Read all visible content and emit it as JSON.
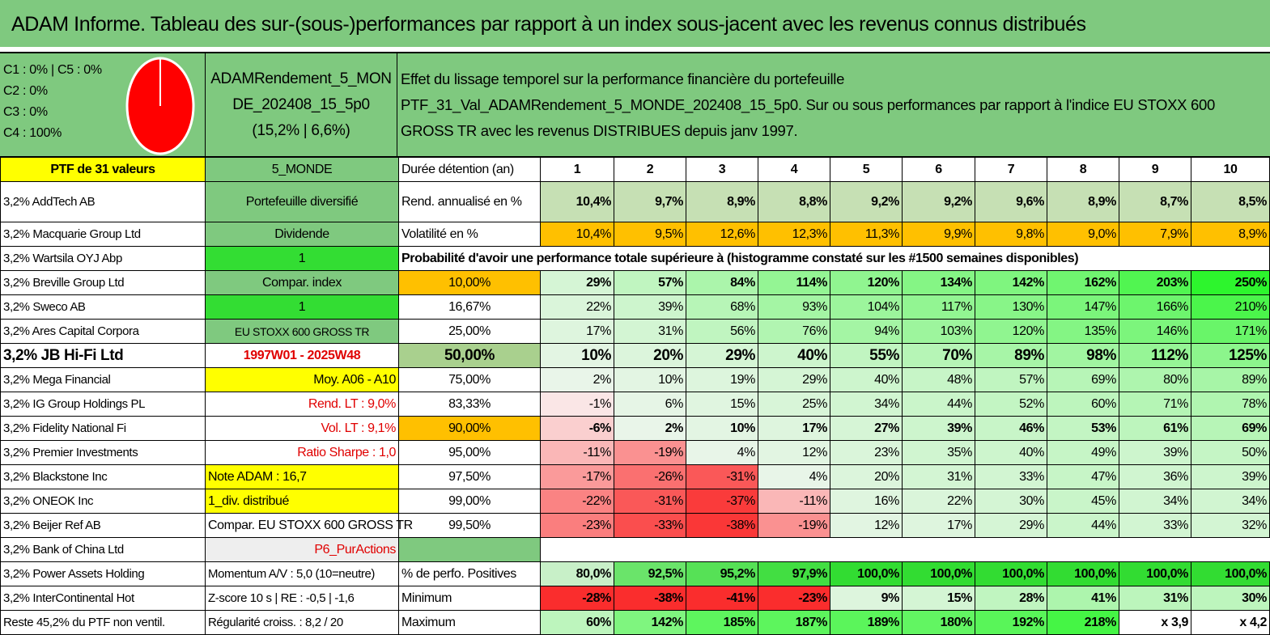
{
  "title": "ADAM Informe. Tableau des sur-(sous-)performances par rapport à un index sous-jacent avec les revenus connus distribués",
  "colors": {
    "green_header": "#7fc97f",
    "yellow": "#ffff00",
    "orange": "#ffc000",
    "bright_green": "#33dd33",
    "pie_red": "#ff0000"
  },
  "legend": [
    "C1 : 0% | C5 : 0%",
    "C2 : 0%",
    "C3 : 0%",
    "C4 : 100%"
  ],
  "pie_share": 100,
  "portfolio_name": [
    "ADAMRendement_5_MON",
    "DE_202408_15_5p0",
    "(15,2% | 6,6%)"
  ],
  "description": [
    "Effet du lissage temporel sur la performance financière du portefeuille",
    "PTF_31_Val_ADAMRendement_5_MONDE_202408_15_5p0. Sur ou sous performances par rapport à l'indice EU STOXX 600",
    "GROSS TR avec les revenus DISTRIBUES depuis janv 1997."
  ],
  "table": {
    "header": {
      "col0": "PTF de 31 valeurs",
      "col1": "5_MONDE",
      "col2": "Durée détention (an)",
      "years": [
        "1",
        "2",
        "3",
        "4",
        "5",
        "6",
        "7",
        "8",
        "9",
        "10"
      ]
    },
    "rendement": {
      "col0": "3,2% AddTech AB",
      "col1": "Portefeuille diversifié",
      "label": "Rend. annualisé en %",
      "values": [
        "10,4%",
        "9,7%",
        "8,9%",
        "8,8%",
        "9,2%",
        "9,2%",
        "9,6%",
        "8,9%",
        "8,7%",
        "8,5%"
      ]
    },
    "volatilite": {
      "col0": "3,2% Macquarie Group Ltd",
      "col1": "Dividende",
      "label": "Volatilité en %",
      "values": [
        "10,4%",
        "9,5%",
        "12,6%",
        "12,3%",
        "11,3%",
        "9,9%",
        "9,8%",
        "9,0%",
        "7,9%",
        "8,9%"
      ]
    },
    "proba_row": {
      "col0": "3,2% Wartsila OYJ Abp",
      "col1": "1",
      "label": "Probabilité d'avoir une performance totale supérieure à (histogramme constaté sur les #1500 semaines disponibles)"
    },
    "quantiles": [
      {
        "col0": "3,2% Breville Group Ltd",
        "col1": "Compar. index",
        "prob": "10,00%",
        "values": [
          "29%",
          "57%",
          "84%",
          "114%",
          "120%",
          "134%",
          "142%",
          "162%",
          "203%",
          "250%"
        ]
      },
      {
        "col0": "3,2% Sweco AB",
        "col1": "1",
        "prob": "16,67%",
        "values": [
          "22%",
          "39%",
          "68%",
          "93%",
          "104%",
          "117%",
          "130%",
          "147%",
          "166%",
          "210%"
        ]
      },
      {
        "col0": "3,2% Ares Capital Corpora",
        "col1": "EU STOXX 600 GROSS TR",
        "prob": "25,00%",
        "values": [
          "17%",
          "31%",
          "56%",
          "76%",
          "94%",
          "103%",
          "120%",
          "135%",
          "146%",
          "171%"
        ]
      },
      {
        "col0": "3,2% JB Hi-Fi Ltd",
        "col1": "1997W01 - 2025W48",
        "prob": "50,00%",
        "values": [
          "10%",
          "20%",
          "29%",
          "40%",
          "55%",
          "70%",
          "89%",
          "98%",
          "112%",
          "125%"
        ]
      },
      {
        "col0": "3,2% Mega Financial",
        "col1": "Moy. A06 - A10",
        "prob": "75,00%",
        "values": [
          "2%",
          "10%",
          "19%",
          "29%",
          "40%",
          "48%",
          "57%",
          "69%",
          "80%",
          "89%"
        ]
      },
      {
        "col0": "3,2% IG Group Holdings PL",
        "col1": "Rend. LT : 9,0%",
        "prob": "83,33%",
        "values": [
          "-1%",
          "6%",
          "15%",
          "25%",
          "34%",
          "44%",
          "52%",
          "60%",
          "71%",
          "78%"
        ]
      },
      {
        "col0": "3,2% Fidelity National Fi",
        "col1": "Vol. LT : 9,1%",
        "prob": "90,00%",
        "values": [
          "-6%",
          "2%",
          "10%",
          "17%",
          "27%",
          "39%",
          "46%",
          "53%",
          "61%",
          "69%"
        ]
      },
      {
        "col0": "3,2% Premier Investments",
        "col1": "Ratio Sharpe : 1,0",
        "prob": "95,00%",
        "values": [
          "-11%",
          "-19%",
          "4%",
          "12%",
          "23%",
          "35%",
          "40%",
          "49%",
          "39%",
          "50%"
        ]
      },
      {
        "col0": "3,2% Blackstone Inc",
        "col1": "Note ADAM : 16,7",
        "prob": "97,50%",
        "values": [
          "-17%",
          "-26%",
          "-31%",
          "4%",
          "20%",
          "31%",
          "33%",
          "47%",
          "36%",
          "39%"
        ]
      },
      {
        "col0": "3,2% ONEOK Inc",
        "col1": "1_div. distribué",
        "prob": "99,00%",
        "values": [
          "-22%",
          "-31%",
          "-37%",
          "-11%",
          "16%",
          "22%",
          "30%",
          "45%",
          "34%",
          "34%"
        ]
      },
      {
        "col0": "3,2% Beijer Ref AB",
        "col1": "Compar. EU STOXX 600 GROSS TR",
        "prob": "99,50%",
        "values": [
          "-23%",
          "-33%",
          "-38%",
          "-19%",
          "12%",
          "17%",
          "29%",
          "44%",
          "33%",
          "32%"
        ]
      }
    ],
    "bank_row": {
      "col0": "3,2% Bank of China Ltd",
      "col1": "P6_PurActions"
    },
    "positives": {
      "col0": "3,2% Power Assets Holding",
      "col1": "Momentum A/V : 5,0 (10=neutre)",
      "label": "% de perfo. Positives",
      "values": [
        "80,0%",
        "92,5%",
        "95,2%",
        "97,9%",
        "100,0%",
        "100,0%",
        "100,0%",
        "100,0%",
        "100,0%",
        "100,0%"
      ]
    },
    "minimum": {
      "col0": "3,2% InterContinental Hot",
      "col1": "Z-score 10 s | RE : -0,5 | -1,6",
      "label": "Minimum",
      "values": [
        "-28%",
        "-38%",
        "-41%",
        "-23%",
        "9%",
        "15%",
        "28%",
        "41%",
        "31%",
        "30%"
      ]
    },
    "maximum": {
      "col0": "Reste 45,2% du PTF non ventil.",
      "col1": "Régularité croiss. : 8,2 / 20",
      "label": "Maximum",
      "values": [
        "60%",
        "142%",
        "185%",
        "187%",
        "189%",
        "180%",
        "192%",
        "218%",
        "x 3,9",
        "x 4,2"
      ]
    }
  }
}
